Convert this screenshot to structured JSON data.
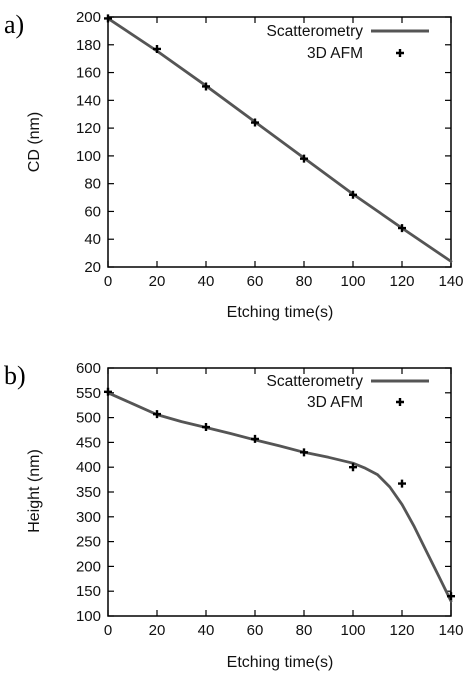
{
  "chart_data": [
    {
      "type": "line",
      "panel_label": "a)",
      "xlabel": "Etching time(s)",
      "ylabel": "CD (nm)",
      "xlim": [
        0,
        140
      ],
      "ylim": [
        20,
        200
      ],
      "xticks": [
        0,
        20,
        40,
        60,
        80,
        100,
        120,
        140
      ],
      "yticks": [
        20,
        40,
        60,
        80,
        100,
        120,
        140,
        160,
        180,
        200
      ],
      "legend_position": "top-right",
      "series": [
        {
          "name": "Scatterometry",
          "style": "line",
          "color": "#555555",
          "x": [
            0,
            20,
            40,
            60,
            80,
            100,
            120,
            140
          ],
          "y": [
            199,
            175.5,
            150.5,
            124.5,
            98.5,
            72.5,
            48,
            24
          ]
        },
        {
          "name": "3D AFM",
          "style": "marker-plus",
          "color": "#000000",
          "x": [
            0,
            20,
            40,
            60,
            80,
            100,
            120
          ],
          "y": [
            199,
            177,
            150,
            124,
            98,
            72,
            48
          ]
        }
      ]
    },
    {
      "type": "line",
      "panel_label": "b)",
      "xlabel": "Etching time(s)",
      "ylabel": "Height (nm)",
      "xlim": [
        0,
        140
      ],
      "ylim": [
        100,
        600
      ],
      "xticks": [
        0,
        20,
        40,
        60,
        80,
        100,
        120,
        140
      ],
      "yticks": [
        100,
        150,
        200,
        250,
        300,
        350,
        400,
        450,
        500,
        550,
        600
      ],
      "legend_position": "top-right",
      "series": [
        {
          "name": "Scatterometry",
          "style": "line",
          "color": "#555555",
          "x": [
            0,
            10,
            20,
            30,
            40,
            50,
            60,
            70,
            80,
            90,
            100,
            105,
            110,
            115,
            120,
            125,
            130,
            135,
            140
          ],
          "y": [
            550,
            528,
            506,
            492,
            480,
            468,
            455,
            443,
            430,
            420,
            408,
            398,
            385,
            360,
            325,
            280,
            230,
            180,
            130
          ]
        },
        {
          "name": "3D AFM",
          "style": "marker-plus",
          "color": "#000000",
          "x": [
            0,
            20,
            40,
            60,
            80,
            100,
            120,
            140
          ],
          "y": [
            552,
            507,
            481,
            457,
            430,
            400,
            367,
            140
          ]
        }
      ]
    }
  ]
}
